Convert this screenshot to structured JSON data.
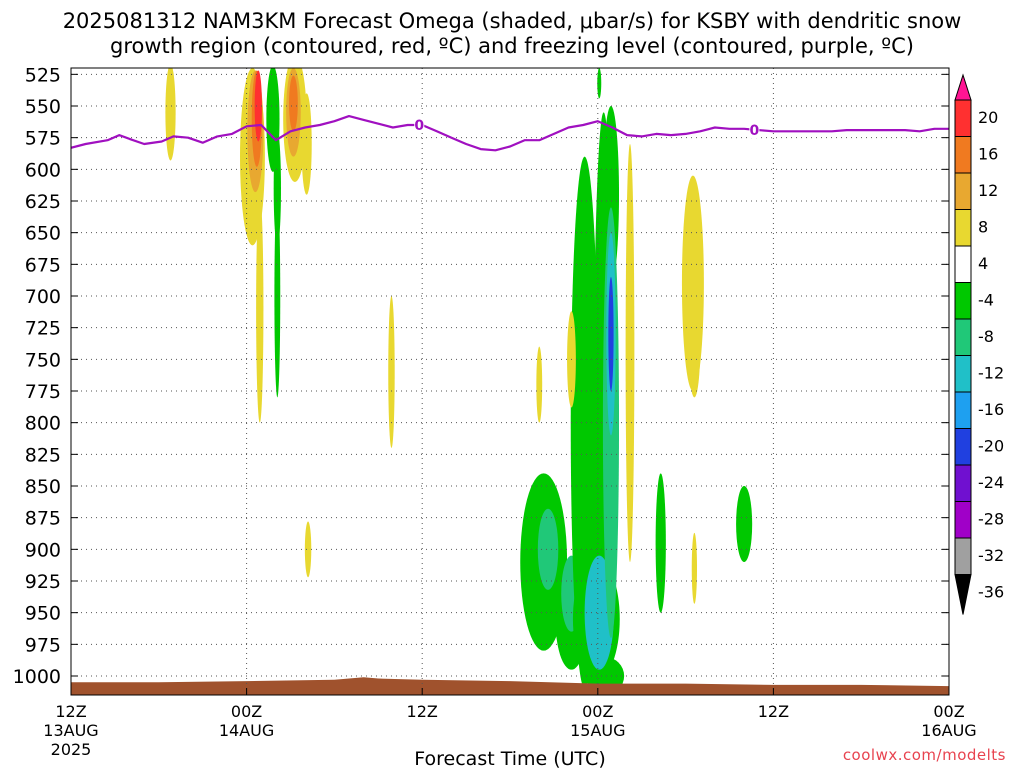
{
  "title_line1": "2025081312 NAM3KM Forecast Omega (shaded, μbar/s) for KSBY with dendritic snow",
  "title_line2": "growth region (contoured, red, ºC) and freezing level (contoured, purple, ºC)",
  "credit": "coolwx.com/modelts",
  "chart_data": {
    "type": "heatmap",
    "xlabel": "Forecast Time (UTC)",
    "ylabel": "",
    "x_ticks": [
      {
        "h": 0,
        "l1": "12Z",
        "l2": "13AUG",
        "l3": "2025"
      },
      {
        "h": 12,
        "l1": "00Z",
        "l2": "14AUG",
        "l3": ""
      },
      {
        "h": 24,
        "l1": "12Z",
        "l2": "",
        "l3": ""
      },
      {
        "h": 36,
        "l1": "00Z",
        "l2": "15AUG",
        "l3": ""
      },
      {
        "h": 48,
        "l1": "12Z",
        "l2": "",
        "l3": ""
      },
      {
        "h": 60,
        "l1": "00Z",
        "l2": "16AUG",
        "l3": ""
      }
    ],
    "xlim_hours": [
      0,
      60
    ],
    "y_ticks": [
      525,
      550,
      575,
      600,
      625,
      650,
      675,
      700,
      725,
      750,
      775,
      800,
      825,
      850,
      875,
      900,
      925,
      950,
      975,
      1000
    ],
    "ylim_hPa": [
      1015,
      520
    ],
    "grid": true,
    "colorbar": {
      "labels": [
        "20",
        "16",
        "12",
        "8",
        "4",
        "-4",
        "-8",
        "-12",
        "-16",
        "-20",
        "-24",
        "-28",
        "-32",
        "-36"
      ],
      "colors": [
        "#ff1493",
        "#ff3030",
        "#f07a20",
        "#e8a830",
        "#e8d830",
        "#ffffff",
        "#00c800",
        "#20c878",
        "#20c0c8",
        "#1ea0f0",
        "#2040e0",
        "#7010d0",
        "#a000c8",
        "#a0a0a0",
        "#000000"
      ]
    },
    "freezing_level": {
      "label": "0",
      "color": "#a010c0",
      "hours": [
        0,
        1,
        2.5,
        3.3,
        4,
        5,
        6.2,
        7,
        8,
        9,
        10,
        11,
        12,
        13,
        14,
        15,
        16,
        17,
        18,
        19,
        20,
        21,
        22,
        23,
        24,
        25,
        26,
        27,
        28,
        29,
        30,
        31,
        32,
        33,
        34,
        35,
        36,
        37,
        38,
        39,
        40,
        41,
        42,
        43,
        44,
        45,
        46,
        47,
        48,
        49,
        50,
        51,
        52,
        53,
        54,
        55,
        56,
        57,
        58,
        59,
        60
      ],
      "values": [
        583,
        580,
        577,
        573,
        576,
        580,
        578,
        574,
        575,
        579,
        574,
        572,
        566,
        565,
        577,
        570,
        567,
        565,
        562,
        558,
        561,
        564,
        567,
        565,
        565,
        570,
        575,
        580,
        584,
        585,
        582,
        577,
        577,
        572,
        567,
        565,
        562,
        567,
        573,
        574,
        572,
        573,
        572,
        570,
        567,
        568,
        568,
        569,
        570,
        570,
        570,
        570,
        570,
        569,
        569,
        569,
        569,
        569,
        570,
        568,
        568
      ]
    },
    "terrain": {
      "color": "#a0522d",
      "hours": [
        0,
        6,
        12,
        18,
        20,
        21,
        24,
        30,
        36,
        42,
        48,
        54,
        60
      ],
      "top_hPa": [
        1005,
        1005,
        1004,
        1003,
        1001,
        1002,
        1003,
        1004,
        1006,
        1006,
        1007,
        1007,
        1008
      ]
    },
    "omega_features": [
      {
        "h": 6.8,
        "p": 555,
        "dh": 0.35,
        "dp": 38,
        "v": 5
      },
      {
        "h": 12.4,
        "p": 590,
        "dh": 0.85,
        "dp": 70,
        "v": 5
      },
      {
        "h": 12.6,
        "p": 570,
        "dh": 0.55,
        "dp": 48,
        "v": 9
      },
      {
        "h": 12.7,
        "p": 560,
        "dh": 0.35,
        "dp": 38,
        "v": 13
      },
      {
        "h": 12.8,
        "p": 550,
        "dh": 0.25,
        "dp": 28,
        "v": 17
      },
      {
        "h": 12.9,
        "p": 710,
        "dh": 0.25,
        "dp": 90,
        "v": 5
      },
      {
        "h": 13.8,
        "p": 560,
        "dh": 0.45,
        "dp": 42,
        "v": -5
      },
      {
        "h": 14.1,
        "p": 700,
        "dh": 0.2,
        "dp": 80,
        "v": -5
      },
      {
        "h": 14.1,
        "p": 615,
        "dh": 0.25,
        "dp": 45,
        "v": -5
      },
      {
        "h": 15.3,
        "p": 560,
        "dh": 0.8,
        "dp": 50,
        "v": 5
      },
      {
        "h": 15.2,
        "p": 555,
        "dh": 0.5,
        "dp": 35,
        "v": 9
      },
      {
        "h": 15.2,
        "p": 548,
        "dh": 0.3,
        "dp": 22,
        "v": 13
      },
      {
        "h": 16.1,
        "p": 580,
        "dh": 0.35,
        "dp": 40,
        "v": 5
      },
      {
        "h": 16.2,
        "p": 900,
        "dh": 0.22,
        "dp": 22,
        "v": 5
      },
      {
        "h": 21.9,
        "p": 760,
        "dh": 0.22,
        "dp": 60,
        "v": 5
      },
      {
        "h": 32.0,
        "p": 770,
        "dh": 0.2,
        "dp": 30,
        "v": 5
      },
      {
        "h": 32.3,
        "p": 910,
        "dh": 1.6,
        "dp": 70,
        "v": -5
      },
      {
        "h": 32.6,
        "p": 900,
        "dh": 0.7,
        "dp": 32,
        "v": -9
      },
      {
        "h": 34.2,
        "p": 955,
        "dh": 1.1,
        "dp": 40,
        "v": -5
      },
      {
        "h": 34.2,
        "p": 935,
        "dh": 0.7,
        "dp": 30,
        "v": -9
      },
      {
        "h": 35.9,
        "p": 955,
        "dh": 1.6,
        "dp": 48,
        "v": -5
      },
      {
        "h": 35.6,
        "p": 940,
        "dh": 0.6,
        "dp": 28,
        "v": -9
      },
      {
        "h": 35.1,
        "p": 800,
        "dh": 0.95,
        "dp": 210,
        "v": -5
      },
      {
        "h": 34.2,
        "p": 750,
        "dh": 0.3,
        "dp": 38,
        "v": 5
      },
      {
        "h": 36.4,
        "p": 810,
        "dh": 0.7,
        "dp": 255,
        "v": -5
      },
      {
        "h": 36.5,
        "p": 1000,
        "dh": 1.3,
        "dp": 15,
        "v": -5
      },
      {
        "h": 36.1,
        "p": 950,
        "dh": 1.0,
        "dp": 45,
        "v": -13
      },
      {
        "h": 36.9,
        "p": 620,
        "dh": 0.55,
        "dp": 70,
        "v": -5
      },
      {
        "h": 36.9,
        "p": 800,
        "dh": 0.55,
        "dp": 170,
        "v": -9
      },
      {
        "h": 36.9,
        "p": 730,
        "dh": 0.32,
        "dp": 80,
        "v": -13
      },
      {
        "h": 36.9,
        "p": 730,
        "dh": 0.18,
        "dp": 45,
        "v": -21
      },
      {
        "h": 36.1,
        "p": 532,
        "dh": 0.1,
        "dp": 12,
        "v": -5
      },
      {
        "h": 38.2,
        "p": 745,
        "dh": 0.3,
        "dp": 165,
        "v": 5
      },
      {
        "h": 40.3,
        "p": 895,
        "dh": 0.35,
        "dp": 55,
        "v": -5
      },
      {
        "h": 42.5,
        "p": 690,
        "dh": 0.75,
        "dp": 85,
        "v": 5
      },
      {
        "h": 42.6,
        "p": 740,
        "dh": 0.4,
        "dp": 40,
        "v": 5
      },
      {
        "h": 42.6,
        "p": 915,
        "dh": 0.18,
        "dp": 28,
        "v": 5
      },
      {
        "h": 46.0,
        "p": 880,
        "dh": 0.55,
        "dp": 30,
        "v": -5
      }
    ]
  }
}
